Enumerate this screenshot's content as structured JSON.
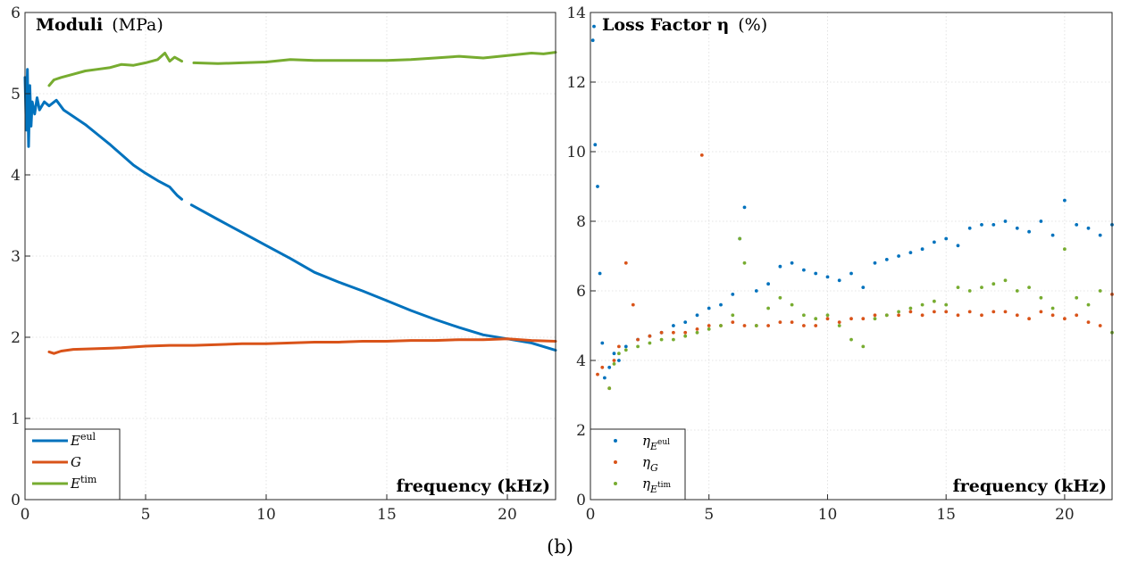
{
  "caption": "(b)",
  "chart_data": [
    {
      "type": "line",
      "title_bold": "Moduli",
      "title_rest": "(MPa)",
      "xlabel": "frequency (kHz)",
      "ylabel": "",
      "xlim": [
        0,
        22
      ],
      "ylim": [
        0,
        6
      ],
      "xticks": [
        0,
        5,
        10,
        15,
        20
      ],
      "yticks": [
        0,
        1,
        2,
        3,
        4,
        5,
        6
      ],
      "grid": true,
      "legend_position": "bottom-left",
      "series": [
        {
          "name": "E",
          "name_sup": "eul",
          "color": "#0072BD",
          "x": [
            0.0,
            0.05,
            0.1,
            0.15,
            0.2,
            0.25,
            0.3,
            0.4,
            0.5,
            0.6,
            0.8,
            1.0,
            1.3,
            1.6,
            2.0,
            2.5,
            3.0,
            3.5,
            4.0,
            4.5,
            5.0,
            5.5,
            6.0,
            6.3,
            6.5
          ],
          "y": [
            5.2,
            4.55,
            5.3,
            4.35,
            5.1,
            4.6,
            4.9,
            4.75,
            4.95,
            4.8,
            4.9,
            4.85,
            4.92,
            4.8,
            4.72,
            4.62,
            4.5,
            4.38,
            4.25,
            4.12,
            4.02,
            3.93,
            3.85,
            3.75,
            3.7
          ]
        },
        {
          "name": "E",
          "name_sup": "eul",
          "color": "#0072BD",
          "x": [
            6.9,
            8.0,
            9.0,
            10.0,
            11.0,
            12.0,
            13.0,
            14.0,
            15.0,
            16.0,
            17.0,
            18.0,
            19.0,
            20.0,
            21.0,
            22.0
          ],
          "y": [
            3.63,
            3.45,
            3.29,
            3.13,
            2.97,
            2.8,
            2.68,
            2.57,
            2.45,
            2.33,
            2.22,
            2.12,
            2.03,
            1.98,
            1.93,
            1.84
          ]
        },
        {
          "name": "G",
          "color": "#D95319",
          "x": [
            1.0,
            1.2,
            1.5,
            2.0,
            3.0,
            4.0,
            5.0,
            6.0,
            7.0,
            8.0,
            9.0,
            10.0,
            11.0,
            12.0,
            13.0,
            14.0,
            15.0,
            16.0,
            17.0,
            18.0,
            19.0,
            20.0,
            21.0,
            22.0
          ],
          "y": [
            1.82,
            1.8,
            1.83,
            1.85,
            1.86,
            1.87,
            1.89,
            1.9,
            1.9,
            1.91,
            1.92,
            1.92,
            1.93,
            1.94,
            1.94,
            1.95,
            1.95,
            1.96,
            1.96,
            1.97,
            1.97,
            1.98,
            1.96,
            1.95
          ]
        },
        {
          "name": "E",
          "name_sup": "tim",
          "color": "#77AC30",
          "x": [
            1.0,
            1.2,
            1.5,
            2.0,
            2.5,
            3.0,
            3.5,
            4.0,
            4.5,
            5.0,
            5.5,
            5.8,
            6.0,
            6.2,
            6.5
          ],
          "y": [
            5.1,
            5.17,
            5.2,
            5.24,
            5.28,
            5.3,
            5.32,
            5.36,
            5.35,
            5.38,
            5.42,
            5.5,
            5.4,
            5.45,
            5.4
          ]
        },
        {
          "name": "E",
          "name_sup": "tim",
          "color": "#77AC30",
          "x": [
            7.0,
            8.0,
            9.0,
            10.0,
            11.0,
            12.0,
            13.0,
            14.0,
            15.0,
            16.0,
            17.0,
            18.0,
            19.0,
            20.0,
            21.0,
            21.5,
            22.0
          ],
          "y": [
            5.38,
            5.37,
            5.38,
            5.39,
            5.42,
            5.41,
            5.41,
            5.41,
            5.41,
            5.42,
            5.44,
            5.46,
            5.44,
            5.47,
            5.5,
            5.49,
            5.51
          ]
        }
      ]
    },
    {
      "type": "scatter",
      "title_bold": "Loss Factor η",
      "title_rest": "(%)",
      "xlabel": "frequency (kHz)",
      "ylabel": "",
      "xlim": [
        0,
        22
      ],
      "ylim": [
        0,
        14
      ],
      "xticks": [
        0,
        5,
        10,
        15,
        20
      ],
      "yticks": [
        0,
        2,
        4,
        6,
        8,
        10,
        12,
        14
      ],
      "grid": true,
      "legend_position": "bottom-left",
      "series": [
        {
          "name": "η",
          "name_sub": "E",
          "name_sub_sup": "eul",
          "color": "#0072BD",
          "x": [
            0.1,
            0.15,
            0.2,
            0.3,
            0.4,
            0.5,
            0.6,
            0.8,
            1.0,
            1.2,
            1.5,
            2.0,
            2.5,
            3.0,
            3.5,
            4.0,
            4.5,
            5.0,
            5.5,
            6.0,
            6.3,
            6.5,
            7.0,
            7.5,
            8.0,
            8.5,
            9.0,
            9.5,
            10.0,
            10.5,
            11.0,
            11.5,
            12.0,
            12.5,
            13.0,
            13.5,
            14.0,
            14.5,
            15.0,
            15.5,
            16.0,
            16.5,
            17.0,
            17.5,
            18.0,
            18.5,
            19.0,
            19.5,
            20.0,
            20.5,
            21.0,
            21.5,
            22.0
          ],
          "y": [
            13.2,
            13.6,
            10.2,
            9.0,
            6.5,
            4.5,
            3.5,
            3.8,
            4.2,
            4.0,
            4.4,
            4.6,
            4.7,
            4.8,
            5.0,
            5.1,
            5.3,
            5.5,
            5.6,
            5.9,
            7.5,
            8.4,
            6.0,
            6.2,
            6.7,
            6.8,
            6.6,
            6.5,
            6.4,
            6.3,
            6.5,
            6.1,
            6.8,
            6.9,
            7.0,
            7.1,
            7.2,
            7.4,
            7.5,
            7.3,
            7.8,
            7.9,
            7.9,
            8.0,
            7.8,
            7.7,
            8.0,
            7.6,
            8.6,
            7.9,
            7.8,
            7.6,
            7.9
          ]
        },
        {
          "name": "η",
          "name_sub": "G",
          "color": "#D95319",
          "x": [
            0.3,
            0.5,
            0.8,
            1.0,
            1.2,
            1.5,
            1.8,
            2.0,
            2.5,
            3.0,
            3.5,
            4.0,
            4.5,
            4.7,
            5.0,
            5.5,
            6.0,
            6.5,
            7.0,
            7.5,
            8.0,
            8.5,
            9.0,
            9.5,
            10.0,
            10.5,
            11.0,
            11.5,
            12.0,
            12.5,
            13.0,
            13.5,
            14.0,
            14.5,
            15.0,
            15.5,
            16.0,
            16.5,
            17.0,
            17.5,
            18.0,
            18.5,
            19.0,
            19.5,
            20.0,
            20.5,
            21.0,
            21.5,
            22.0
          ],
          "y": [
            3.6,
            3.8,
            3.2,
            4.0,
            4.4,
            6.8,
            5.6,
            4.6,
            4.7,
            4.8,
            4.8,
            4.8,
            4.9,
            9.9,
            5.0,
            5.0,
            5.1,
            5.0,
            5.0,
            5.0,
            5.1,
            5.1,
            5.0,
            5.0,
            5.2,
            5.1,
            5.2,
            5.2,
            5.3,
            5.3,
            5.3,
            5.4,
            5.3,
            5.4,
            5.4,
            5.3,
            5.4,
            5.3,
            5.4,
            5.4,
            5.3,
            5.2,
            5.4,
            5.3,
            5.2,
            5.3,
            5.1,
            5.0,
            5.9
          ]
        },
        {
          "name": "η",
          "name_sub": "E",
          "name_sub_sup": "tim",
          "color": "#77AC30",
          "x": [
            0.8,
            1.0,
            1.2,
            1.5,
            2.0,
            2.5,
            3.0,
            3.5,
            4.0,
            4.5,
            5.0,
            5.5,
            6.0,
            6.3,
            6.5,
            7.0,
            7.5,
            8.0,
            8.5,
            9.0,
            9.5,
            10.0,
            10.5,
            11.0,
            11.5,
            12.0,
            12.5,
            13.0,
            13.5,
            14.0,
            14.5,
            15.0,
            15.5,
            16.0,
            16.5,
            17.0,
            17.5,
            18.0,
            18.5,
            19.0,
            19.5,
            20.0,
            20.5,
            21.0,
            21.5,
            22.0
          ],
          "y": [
            3.2,
            3.9,
            4.2,
            4.3,
            4.4,
            4.5,
            4.6,
            4.6,
            4.7,
            4.8,
            4.9,
            5.0,
            5.3,
            7.5,
            6.8,
            5.0,
            5.5,
            5.8,
            5.6,
            5.3,
            5.2,
            5.3,
            5.0,
            4.6,
            4.4,
            5.2,
            5.3,
            5.4,
            5.5,
            5.6,
            5.7,
            5.6,
            6.1,
            6.0,
            6.1,
            6.2,
            6.3,
            6.0,
            6.1,
            5.8,
            5.5,
            7.2,
            5.8,
            5.6,
            6.0,
            4.8
          ]
        }
      ]
    }
  ]
}
